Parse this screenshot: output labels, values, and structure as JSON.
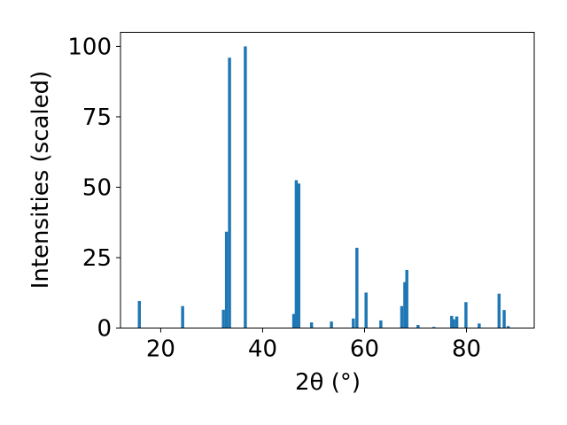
{
  "chart_data": {
    "type": "bar",
    "xlabel": "2θ (°)",
    "ylabel": "Intensities (scaled)",
    "xlim": [
      12.1,
      93.3
    ],
    "ylim": [
      0,
      105
    ],
    "x_ticks": [
      20,
      40,
      60,
      80
    ],
    "y_ticks": [
      0,
      25,
      50,
      75,
      100
    ],
    "bar_color": "#1f77b4",
    "grid": false,
    "bar_width": 0.6,
    "series": [
      {
        "x": [
          15.8,
          24.3,
          32.3,
          32.9,
          33.5,
          36.6,
          46.1,
          46.6,
          47.1,
          49.6,
          53.5,
          57.8,
          58.5,
          60.3,
          63.2,
          67.3,
          67.9,
          68.3,
          70.5,
          73.6,
          77.1,
          77.5,
          78.1,
          79.9,
          82.5,
          86.4,
          87.4,
          88.2
        ],
        "values": [
          9.6,
          7.8,
          6.5,
          34.2,
          96.0,
          100.0,
          5.0,
          52.5,
          51.3,
          2.0,
          2.3,
          3.4,
          28.5,
          12.6,
          2.7,
          7.8,
          16.3,
          20.6,
          1.1,
          0.4,
          4.3,
          3.1,
          4.1,
          9.2,
          1.6,
          12.2,
          6.4,
          0.7
        ]
      }
    ]
  }
}
